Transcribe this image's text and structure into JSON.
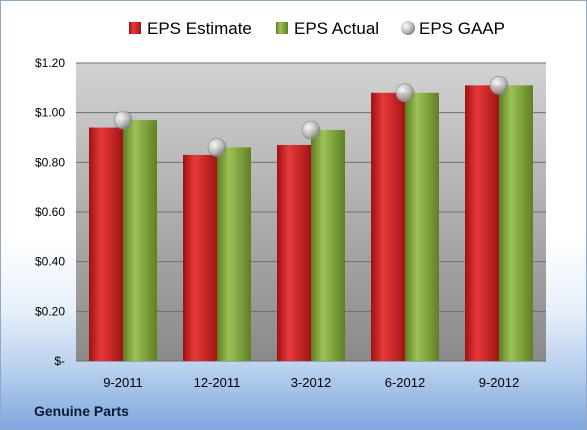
{
  "chart_data": {
    "type": "bar",
    "categories": [
      "9-2011",
      "12-2011",
      "3-2012",
      "6-2012",
      "9-2012"
    ],
    "series": [
      {
        "name": "EPS Estimate",
        "kind": "bar",
        "color": "#cc1f1f",
        "values": [
          0.94,
          0.83,
          0.87,
          1.08,
          1.11
        ]
      },
      {
        "name": "EPS Actual",
        "kind": "bar",
        "color": "#7fa33a",
        "values": [
          0.97,
          0.86,
          0.93,
          1.08,
          1.11
        ]
      },
      {
        "name": "EPS GAAP",
        "kind": "marker",
        "color": "#c8c8c8",
        "values": [
          0.97,
          0.86,
          0.93,
          1.08,
          1.11
        ]
      }
    ],
    "y_ticks": [
      0,
      0.2,
      0.4,
      0.6,
      0.8,
      1.0,
      1.2
    ],
    "y_tick_labels": [
      "$-",
      "$0.20",
      "$0.40",
      "$0.60",
      "$0.80",
      "$1.00",
      "$1.20"
    ],
    "ylim": [
      0,
      1.2
    ],
    "grid": true,
    "legend_position": "top"
  },
  "footer": {
    "company": "Genuine Parts"
  }
}
